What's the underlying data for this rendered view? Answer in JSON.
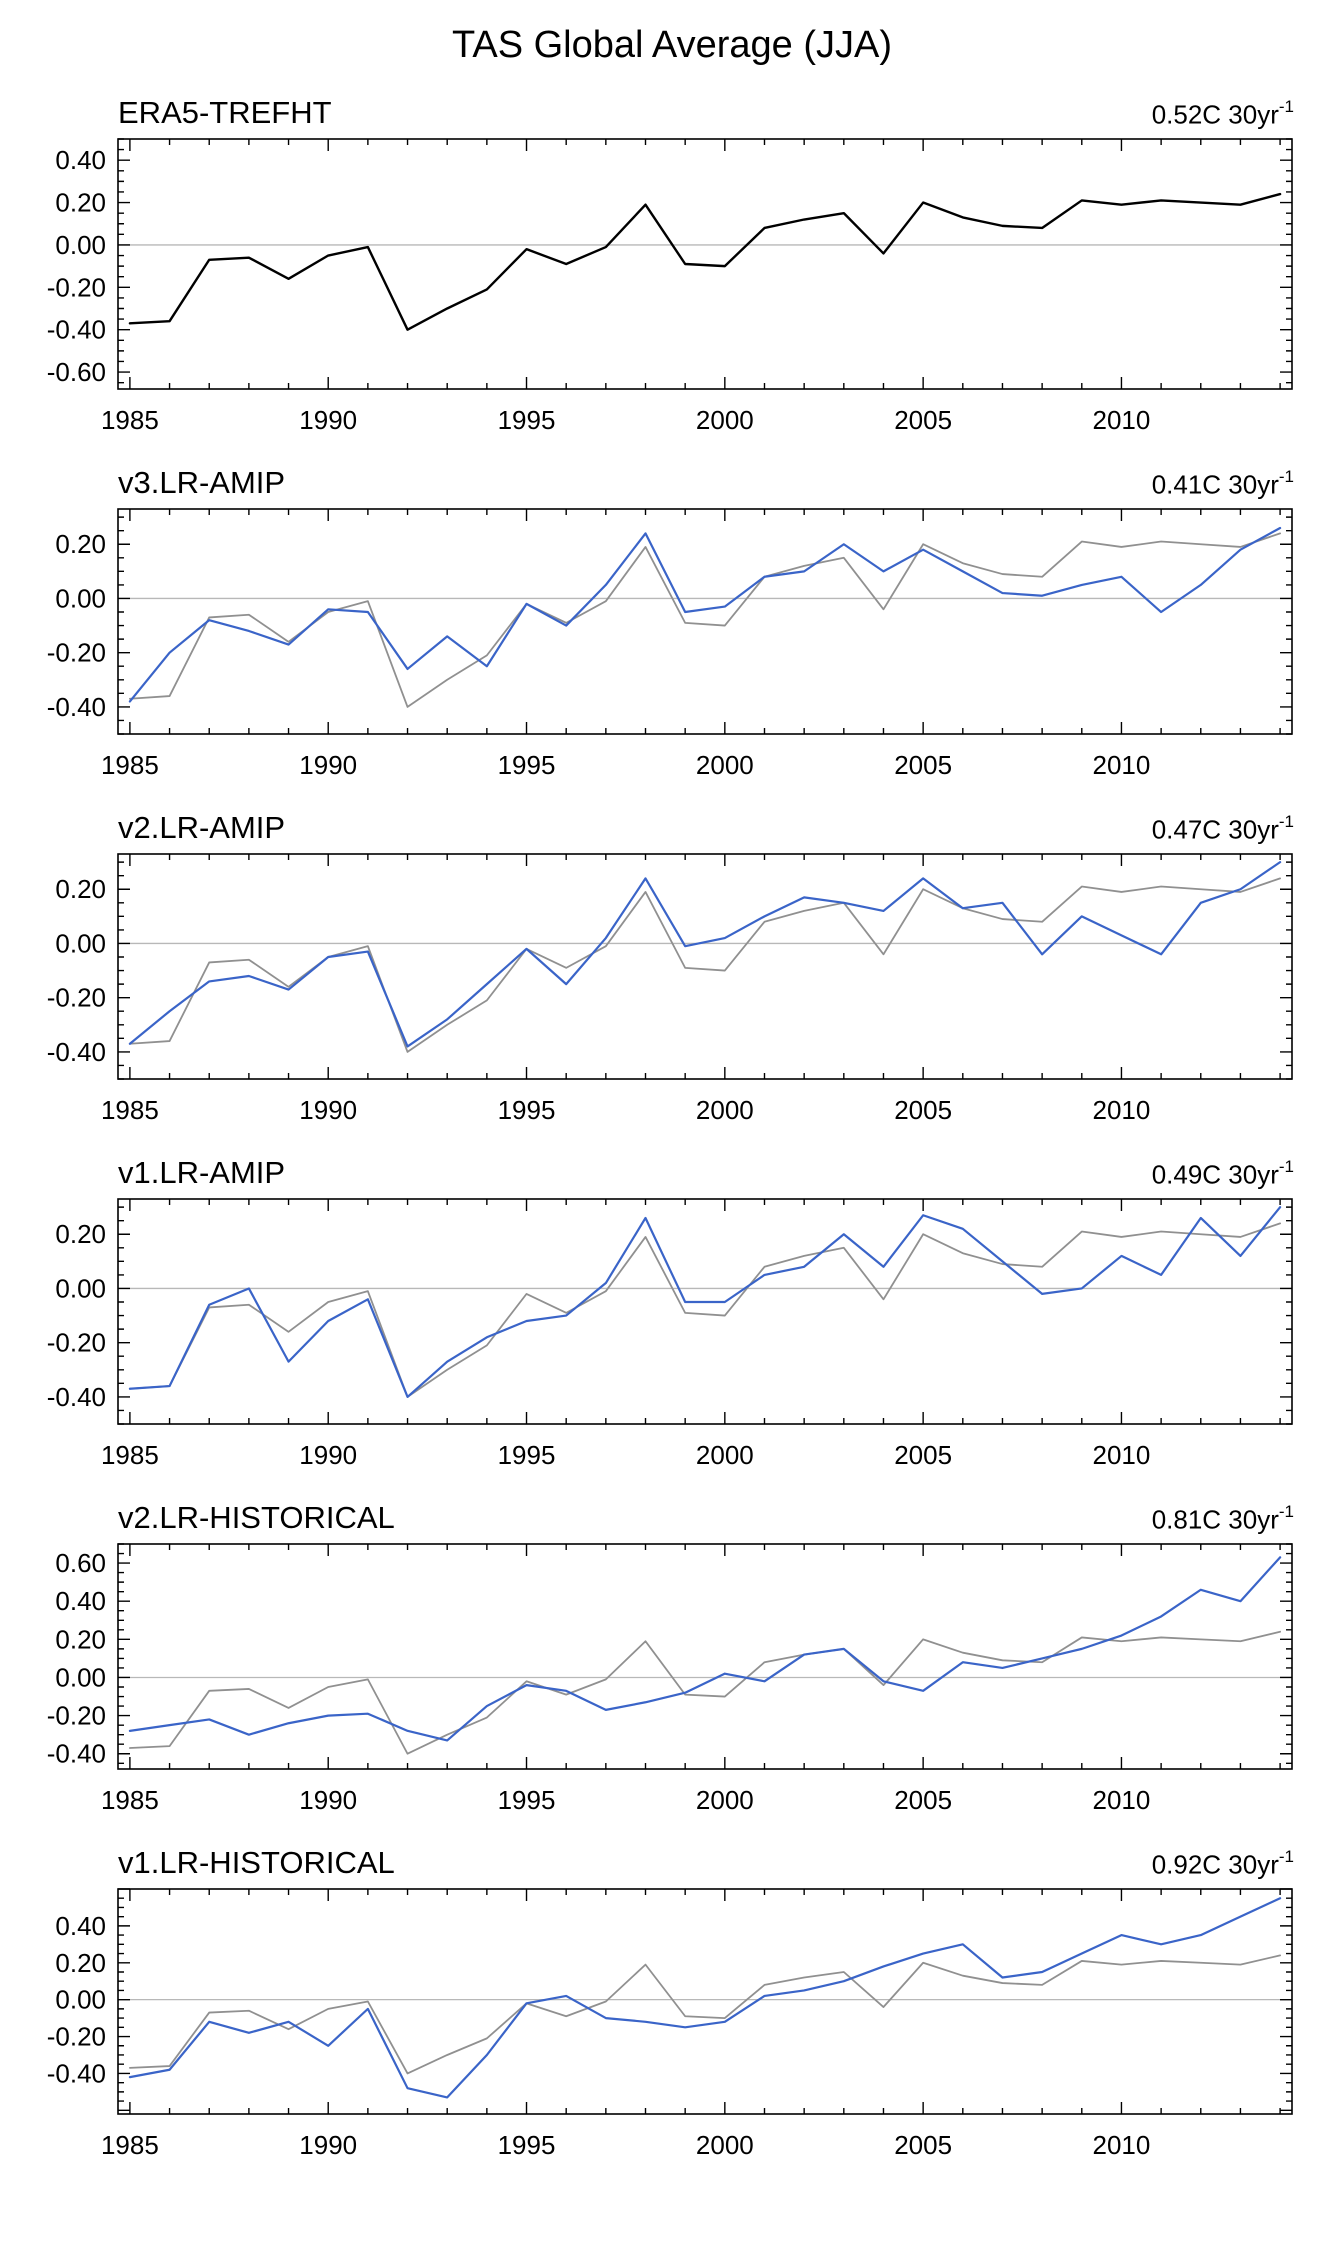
{
  "title": "TAS Global Average (JJA)",
  "panels": [
    {
      "title": "ERA5-TREFHT",
      "rate": "0.52C 30yr",
      "rate_sup": "-1"
    },
    {
      "title": "v3.LR-AMIP",
      "rate": "0.41C 30yr",
      "rate_sup": "-1"
    },
    {
      "title": "v2.LR-AMIP",
      "rate": "0.47C 30yr",
      "rate_sup": "-1"
    },
    {
      "title": "v1.LR-AMIP",
      "rate": "0.49C 30yr",
      "rate_sup": "-1"
    },
    {
      "title": "v2.LR-HISTORICAL",
      "rate": "0.81C 30yr",
      "rate_sup": "-1"
    },
    {
      "title": "v1.LR-HISTORICAL",
      "rate": "0.92C 30yr",
      "rate_sup": "-1"
    }
  ],
  "chart_data": [
    {
      "type": "line",
      "x_start": 1985,
      "x_end": 2014,
      "xticks_labeled": [
        1985,
        1990,
        1995,
        2000,
        2005,
        2010
      ],
      "ylim": [
        -0.68,
        0.5
      ],
      "yticks": [
        0.4,
        0.2,
        0.0,
        -0.2,
        -0.4,
        -0.6
      ],
      "series": [
        {
          "name": "ERA5-TREFHT",
          "color": "#000000",
          "values": [
            -0.37,
            -0.36,
            -0.07,
            -0.06,
            -0.16,
            -0.05,
            -0.01,
            -0.4,
            -0.3,
            -0.21,
            -0.02,
            -0.09,
            -0.01,
            0.19,
            -0.09,
            -0.1,
            0.08,
            0.12,
            0.15,
            -0.04,
            0.2,
            0.13,
            0.09,
            0.08,
            0.21,
            0.19,
            0.21,
            0.2,
            0.19,
            0.24
          ]
        }
      ]
    },
    {
      "type": "line",
      "x_start": 1985,
      "x_end": 2014,
      "xticks_labeled": [
        1985,
        1990,
        1995,
        2000,
        2005,
        2010
      ],
      "ylim": [
        -0.5,
        0.33
      ],
      "yticks": [
        0.2,
        0.0,
        -0.2,
        -0.4
      ],
      "series": [
        {
          "name": "ERA5-TREFHT",
          "color": "#909090",
          "values": [
            -0.37,
            -0.36,
            -0.07,
            -0.06,
            -0.16,
            -0.05,
            -0.01,
            -0.4,
            -0.3,
            -0.21,
            -0.02,
            -0.09,
            -0.01,
            0.19,
            -0.09,
            -0.1,
            0.08,
            0.12,
            0.15,
            -0.04,
            0.2,
            0.13,
            0.09,
            0.08,
            0.21,
            0.19,
            0.21,
            0.2,
            0.19,
            0.24
          ]
        },
        {
          "name": "v3.LR-AMIP",
          "color": "#3a64c8",
          "values": [
            -0.38,
            -0.2,
            -0.08,
            -0.12,
            -0.17,
            -0.04,
            -0.05,
            -0.26,
            -0.14,
            -0.25,
            -0.02,
            -0.1,
            0.05,
            0.24,
            -0.05,
            -0.03,
            0.08,
            0.1,
            0.2,
            0.1,
            0.18,
            0.1,
            0.02,
            0.01,
            0.05,
            0.08,
            -0.05,
            0.05,
            0.18,
            0.26
          ]
        }
      ]
    },
    {
      "type": "line",
      "x_start": 1985,
      "x_end": 2014,
      "xticks_labeled": [
        1985,
        1990,
        1995,
        2000,
        2005,
        2010
      ],
      "ylim": [
        -0.5,
        0.33
      ],
      "yticks": [
        0.2,
        0.0,
        -0.2,
        -0.4
      ],
      "series": [
        {
          "name": "ERA5-TREFHT",
          "color": "#909090",
          "values": [
            -0.37,
            -0.36,
            -0.07,
            -0.06,
            -0.16,
            -0.05,
            -0.01,
            -0.4,
            -0.3,
            -0.21,
            -0.02,
            -0.09,
            -0.01,
            0.19,
            -0.09,
            -0.1,
            0.08,
            0.12,
            0.15,
            -0.04,
            0.2,
            0.13,
            0.09,
            0.08,
            0.21,
            0.19,
            0.21,
            0.2,
            0.19,
            0.24
          ]
        },
        {
          "name": "v2.LR-AMIP",
          "color": "#3a64c8",
          "values": [
            -0.37,
            -0.25,
            -0.14,
            -0.12,
            -0.17,
            -0.05,
            -0.03,
            -0.38,
            -0.28,
            -0.15,
            -0.02,
            -0.15,
            0.02,
            0.24,
            -0.01,
            0.02,
            0.1,
            0.17,
            0.15,
            0.12,
            0.24,
            0.13,
            0.15,
            -0.04,
            0.1,
            0.03,
            -0.04,
            0.15,
            0.2,
            0.3
          ]
        }
      ]
    },
    {
      "type": "line",
      "x_start": 1985,
      "x_end": 2014,
      "xticks_labeled": [
        1985,
        1990,
        1995,
        2000,
        2005,
        2010
      ],
      "ylim": [
        -0.5,
        0.33
      ],
      "yticks": [
        0.2,
        0.0,
        -0.2,
        -0.4
      ],
      "series": [
        {
          "name": "ERA5-TREFHT",
          "color": "#909090",
          "values": [
            -0.37,
            -0.36,
            -0.07,
            -0.06,
            -0.16,
            -0.05,
            -0.01,
            -0.4,
            -0.3,
            -0.21,
            -0.02,
            -0.09,
            -0.01,
            0.19,
            -0.09,
            -0.1,
            0.08,
            0.12,
            0.15,
            -0.04,
            0.2,
            0.13,
            0.09,
            0.08,
            0.21,
            0.19,
            0.21,
            0.2,
            0.19,
            0.24
          ]
        },
        {
          "name": "v1.LR-AMIP",
          "color": "#3a64c8",
          "values": [
            -0.37,
            -0.36,
            -0.06,
            0.0,
            -0.27,
            -0.12,
            -0.04,
            -0.4,
            -0.27,
            -0.18,
            -0.12,
            -0.1,
            0.02,
            0.26,
            -0.05,
            -0.05,
            0.05,
            0.08,
            0.2,
            0.08,
            0.27,
            0.22,
            0.1,
            -0.02,
            0.0,
            0.12,
            0.05,
            0.26,
            0.12,
            0.3
          ]
        }
      ]
    },
    {
      "type": "line",
      "x_start": 1985,
      "x_end": 2014,
      "xticks_labeled": [
        1985,
        1990,
        1995,
        2000,
        2005,
        2010
      ],
      "ylim": [
        -0.48,
        0.7
      ],
      "yticks": [
        0.6,
        0.4,
        0.2,
        0.0,
        -0.2,
        -0.4
      ],
      "series": [
        {
          "name": "ERA5-TREFHT",
          "color": "#909090",
          "values": [
            -0.37,
            -0.36,
            -0.07,
            -0.06,
            -0.16,
            -0.05,
            -0.01,
            -0.4,
            -0.3,
            -0.21,
            -0.02,
            -0.09,
            -0.01,
            0.19,
            -0.09,
            -0.1,
            0.08,
            0.12,
            0.15,
            -0.04,
            0.2,
            0.13,
            0.09,
            0.08,
            0.21,
            0.19,
            0.21,
            0.2,
            0.19,
            0.24
          ]
        },
        {
          "name": "v2.LR-HISTORICAL",
          "color": "#3a64c8",
          "values": [
            -0.28,
            -0.25,
            -0.22,
            -0.3,
            -0.24,
            -0.2,
            -0.19,
            -0.28,
            -0.33,
            -0.15,
            -0.04,
            -0.07,
            -0.17,
            -0.13,
            -0.08,
            0.02,
            -0.02,
            0.12,
            0.15,
            -0.02,
            -0.07,
            0.08,
            0.05,
            0.1,
            0.15,
            0.22,
            0.32,
            0.46,
            0.4,
            0.63
          ]
        }
      ]
    },
    {
      "type": "line",
      "x_start": 1985,
      "x_end": 2014,
      "xticks_labeled": [
        1985,
        1990,
        1995,
        2000,
        2005,
        2010
      ],
      "ylim": [
        -0.62,
        0.6
      ],
      "yticks": [
        0.4,
        0.2,
        0.0,
        -0.2,
        -0.4
      ],
      "series": [
        {
          "name": "ERA5-TREFHT",
          "color": "#909090",
          "values": [
            -0.37,
            -0.36,
            -0.07,
            -0.06,
            -0.16,
            -0.05,
            -0.01,
            -0.4,
            -0.3,
            -0.21,
            -0.02,
            -0.09,
            -0.01,
            0.19,
            -0.09,
            -0.1,
            0.08,
            0.12,
            0.15,
            -0.04,
            0.2,
            0.13,
            0.09,
            0.08,
            0.21,
            0.19,
            0.21,
            0.2,
            0.19,
            0.24
          ]
        },
        {
          "name": "v1.LR-HISTORICAL",
          "color": "#3a64c8",
          "values": [
            -0.42,
            -0.38,
            -0.12,
            -0.18,
            -0.12,
            -0.25,
            -0.05,
            -0.48,
            -0.53,
            -0.3,
            -0.02,
            0.02,
            -0.1,
            -0.12,
            -0.15,
            -0.12,
            0.02,
            0.05,
            0.1,
            0.18,
            0.25,
            0.3,
            0.12,
            0.15,
            0.25,
            0.35,
            0.3,
            0.35,
            0.45,
            0.55
          ]
        }
      ]
    }
  ]
}
